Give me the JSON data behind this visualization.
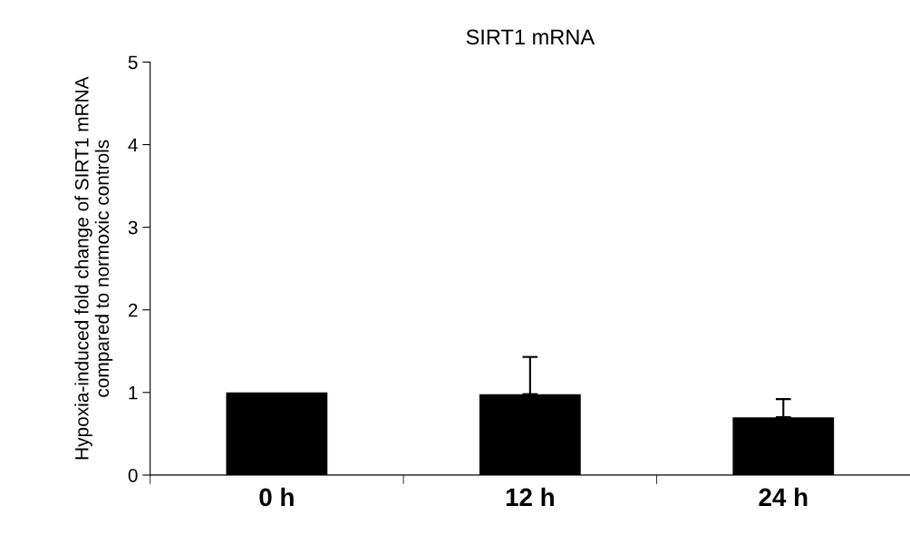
{
  "chart_data": {
    "type": "bar",
    "title": "SIRT1 mRNA",
    "ylabel": "Hypoxia-induced fold change of SIRT1 mRNA\ncompared to normoxic controls",
    "categories": [
      "0 h",
      "12 h",
      "24 h"
    ],
    "values": [
      1.0,
      0.98,
      0.7
    ],
    "errors": [
      null,
      [
        0.98,
        1.43
      ],
      [
        0.7,
        0.92
      ]
    ],
    "color": "#000000",
    "ylim": [
      0,
      5
    ],
    "yticks": [
      0,
      1,
      2,
      3,
      4,
      5
    ],
    "grid": false
  }
}
